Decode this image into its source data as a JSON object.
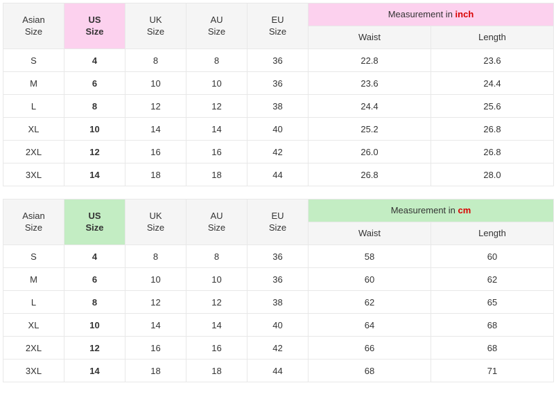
{
  "tables": [
    {
      "header_bg_class": "gray-bg",
      "us_bg_class": "us-pink",
      "meas_bg_class": "meas-pink",
      "unit_label": "inch",
      "unit_class": "unit-inch",
      "columns": {
        "asian": {
          "line1": "Asian",
          "line2": "Size"
        },
        "us": {
          "line1": "US",
          "line2": "Size"
        },
        "uk": {
          "line1": "UK",
          "line2": "Size"
        },
        "au": {
          "line1": "AU",
          "line2": "Size"
        },
        "eu": {
          "line1": "EU",
          "line2": "Size"
        },
        "meas_prefix": "Measurement in ",
        "waist": "Waist",
        "length": "Length"
      },
      "rows": [
        {
          "asian": "S",
          "us": "4",
          "uk": "8",
          "au": "8",
          "eu": "36",
          "waist": "22.8",
          "length": "23.6"
        },
        {
          "asian": "M",
          "us": "6",
          "uk": "10",
          "au": "10",
          "eu": "36",
          "waist": "23.6",
          "length": "24.4"
        },
        {
          "asian": "L",
          "us": "8",
          "uk": "12",
          "au": "12",
          "eu": "38",
          "waist": "24.4",
          "length": "25.6"
        },
        {
          "asian": "XL",
          "us": "10",
          "uk": "14",
          "au": "14",
          "eu": "40",
          "waist": "25.2",
          "length": "26.8"
        },
        {
          "asian": "2XL",
          "us": "12",
          "uk": "16",
          "au": "16",
          "eu": "42",
          "waist": "26.0",
          "length": "26.8"
        },
        {
          "asian": "3XL",
          "us": "14",
          "uk": "18",
          "au": "18",
          "eu": "44",
          "waist": "26.8",
          "length": "28.0"
        }
      ]
    },
    {
      "header_bg_class": "gray-bg",
      "us_bg_class": "us-green",
      "meas_bg_class": "meas-green",
      "unit_label": "cm",
      "unit_class": "unit-cm",
      "columns": {
        "asian": {
          "line1": "Asian",
          "line2": "Size"
        },
        "us": {
          "line1": "US",
          "line2": "Size"
        },
        "uk": {
          "line1": "UK",
          "line2": "Size"
        },
        "au": {
          "line1": "AU",
          "line2": "Size"
        },
        "eu": {
          "line1": "EU",
          "line2": "Size"
        },
        "meas_prefix": "Measurement in ",
        "waist": "Waist",
        "length": "Length"
      },
      "rows": [
        {
          "asian": "S",
          "us": "4",
          "uk": "8",
          "au": "8",
          "eu": "36",
          "waist": "58",
          "length": "60"
        },
        {
          "asian": "M",
          "us": "6",
          "uk": "10",
          "au": "10",
          "eu": "36",
          "waist": "60",
          "length": "62"
        },
        {
          "asian": "L",
          "us": "8",
          "uk": "12",
          "au": "12",
          "eu": "38",
          "waist": "62",
          "length": "65"
        },
        {
          "asian": "XL",
          "us": "10",
          "uk": "14",
          "au": "14",
          "eu": "40",
          "waist": "64",
          "length": "68"
        },
        {
          "asian": "2XL",
          "us": "12",
          "uk": "16",
          "au": "16",
          "eu": "42",
          "waist": "66",
          "length": "68"
        },
        {
          "asian": "3XL",
          "us": "14",
          "uk": "18",
          "au": "18",
          "eu": "44",
          "waist": "68",
          "length": "71"
        }
      ]
    }
  ]
}
